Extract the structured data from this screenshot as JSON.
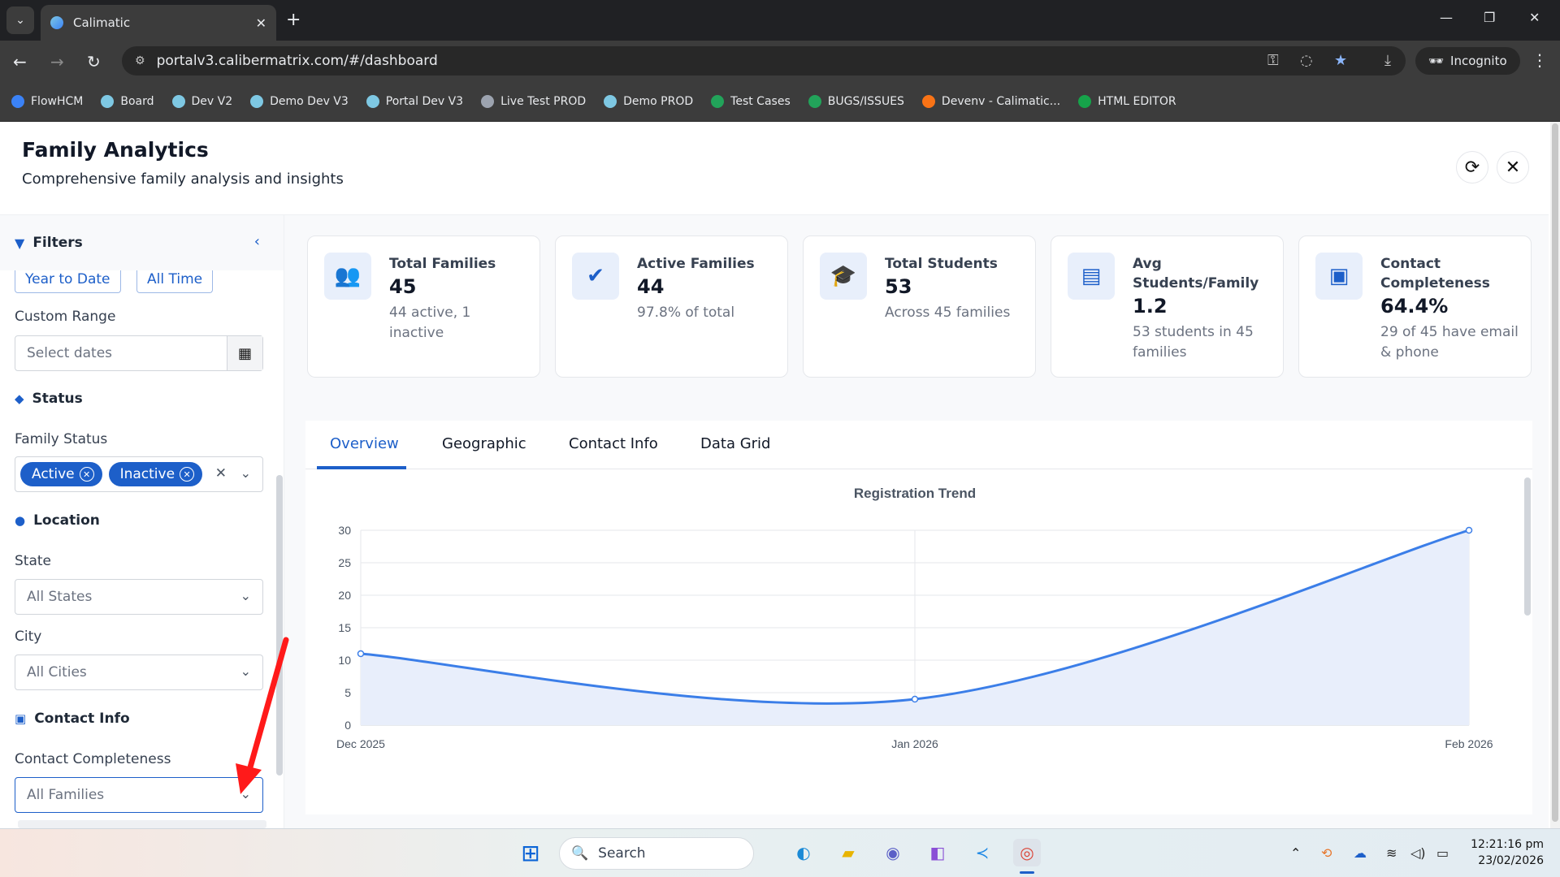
{
  "browser": {
    "tab_title": "Calimatic",
    "url": "portalv3.calibermatrix.com/#/dashboard",
    "incognito_label": "Incognito",
    "bookmarks": [
      {
        "label": "FlowHCM",
        "color": "#3b82f6"
      },
      {
        "label": "Board",
        "color": "#7ec8e3"
      },
      {
        "label": "Dev V2",
        "color": "#7ec8e3"
      },
      {
        "label": "Demo Dev V3",
        "color": "#7ec8e3"
      },
      {
        "label": "Portal Dev V3",
        "color": "#7ec8e3"
      },
      {
        "label": "Live Test PROD",
        "color": "#9ca3af"
      },
      {
        "label": "Demo PROD",
        "color": "#7ec8e3"
      },
      {
        "label": "Test Cases",
        "color": "#22a35a"
      },
      {
        "label": "BUGS/ISSUES",
        "color": "#22a35a"
      },
      {
        "label": "Devenv - Calimatic...",
        "color": "#f97316"
      },
      {
        "label": "HTML EDITOR",
        "color": "#16a34a"
      }
    ]
  },
  "header": {
    "title": "Family Analytics",
    "subtitle": "Comprehensive family analysis and insights"
  },
  "sidebar": {
    "title": "Filters",
    "date_buttons": [
      "Year to Date",
      "All Time"
    ],
    "custom_range_label": "Custom Range",
    "custom_range_placeholder": "Select dates",
    "status_section": "Status",
    "family_status_label": "Family Status",
    "family_status_chips": [
      "Active",
      "Inactive"
    ],
    "location_section": "Location",
    "state_label": "State",
    "state_value": "All States",
    "city_label": "City",
    "city_value": "All Cities",
    "contact_section": "Contact Info",
    "contact_completeness_label": "Contact Completeness",
    "contact_completeness_value": "All Families"
  },
  "cards": [
    {
      "title": "Total Families",
      "value": "45",
      "sub": "44 active, 1 inactive",
      "icon": "users-icon"
    },
    {
      "title": "Active Families",
      "value": "44",
      "sub": "97.8% of total",
      "icon": "user-check-icon"
    },
    {
      "title": "Total Students",
      "value": "53",
      "sub": "Across 45 families",
      "icon": "graduation-cap-icon"
    },
    {
      "title": "Avg Students/Family",
      "value": "1.2",
      "sub": "53 students in 45 families",
      "icon": "chart-icon"
    },
    {
      "title": "Contact Completeness",
      "value": "64.4%",
      "sub": "29 of 45 have email & phone",
      "icon": "contact-book-icon"
    }
  ],
  "tabs": [
    "Overview",
    "Geographic",
    "Contact Info",
    "Data Grid"
  ],
  "active_tab": "Overview",
  "colors": {
    "accent": "#1d5fc9",
    "line": "#3b7ee8",
    "fill": "#e8eefb"
  },
  "chart_data": {
    "type": "area",
    "title": "Registration Trend",
    "categories": [
      "Dec 2025",
      "Jan 2026",
      "Feb 2026"
    ],
    "values": [
      11,
      4,
      30
    ],
    "ylim": [
      0,
      30
    ],
    "yticks": [
      0,
      5,
      10,
      15,
      20,
      25,
      30
    ],
    "xlabel": "",
    "ylabel": "",
    "grid": true
  },
  "taskbar": {
    "search_label": "Search",
    "time": "12:21:16 pm",
    "date": "23/02/2026"
  }
}
